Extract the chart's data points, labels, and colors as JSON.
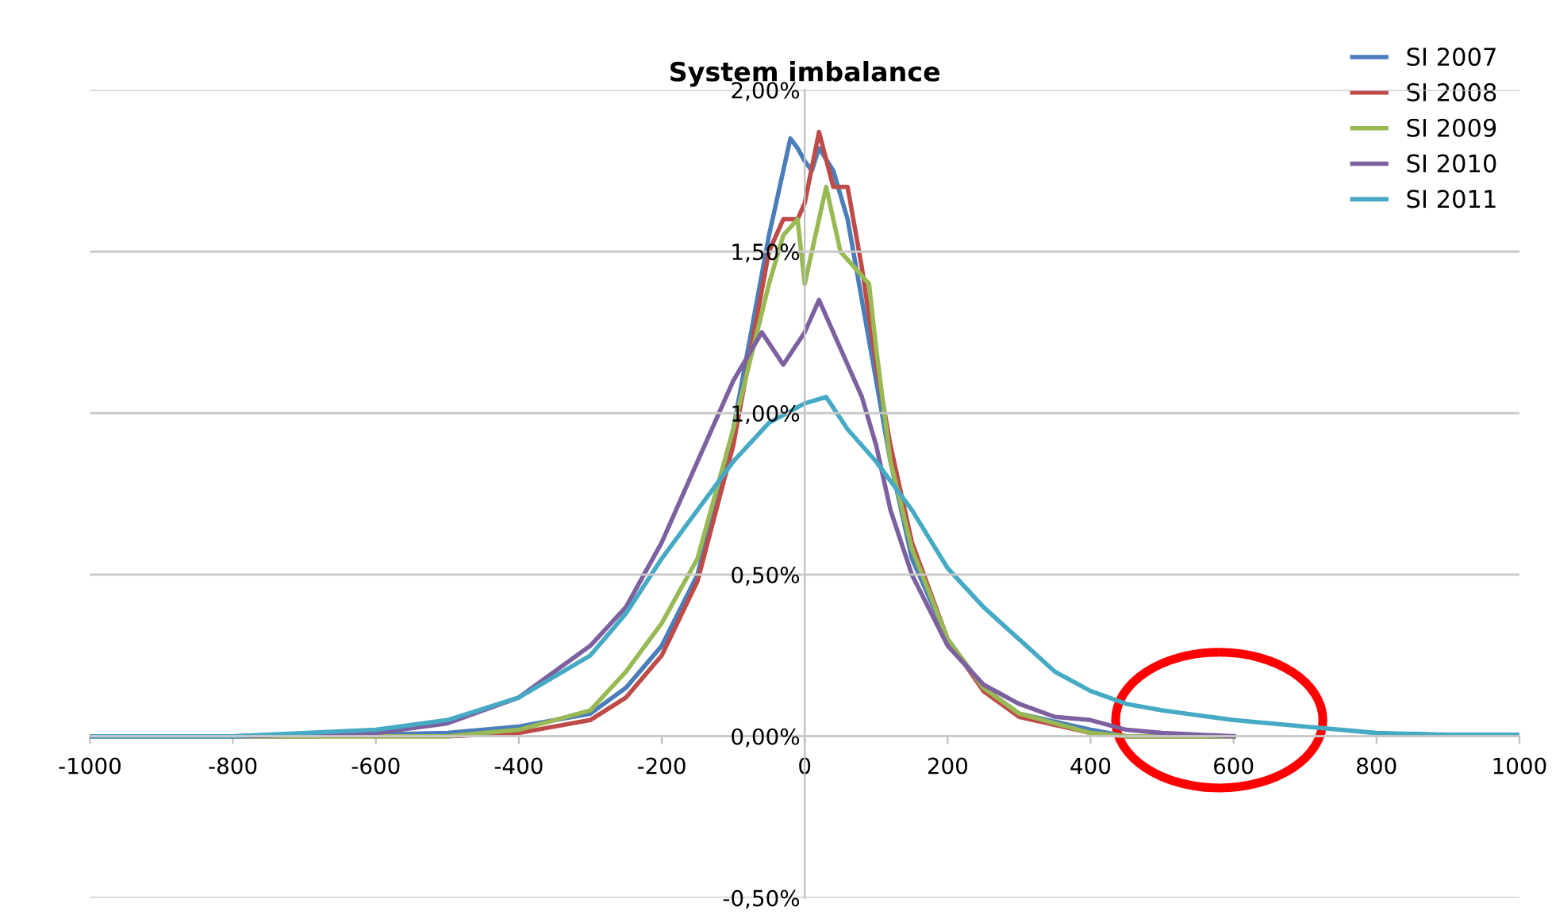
{
  "chart_data": {
    "type": "line",
    "title": "System imbalance",
    "xlim": [
      -1000,
      1000
    ],
    "xticks": [
      -1000,
      -800,
      -600,
      -400,
      -200,
      0,
      200,
      400,
      600,
      800,
      1000
    ],
    "ylim": [
      -0.5,
      2.0
    ],
    "yticks": [
      {
        "value": -0.5,
        "label": "-0,50%"
      },
      {
        "value": 0,
        "label": "0,00%"
      },
      {
        "value": 0.5,
        "label": "0,50%"
      },
      {
        "value": 1.0,
        "label": "1,00%"
      },
      {
        "value": 1.5,
        "label": "1,50%"
      },
      {
        "value": 2.0,
        "label": "2,00%"
      }
    ],
    "grid": "y",
    "legend": "top right",
    "marker": "none",
    "line_style": "solid",
    "series": [
      {
        "name": "SI 2007",
        "color": "#4a7ebb",
        "x": [
          -1000,
          -700,
          -500,
          -400,
          -300,
          -250,
          -200,
          -150,
          -100,
          -75,
          -50,
          -30,
          -20,
          -10,
          0,
          10,
          20,
          40,
          60,
          80,
          100,
          120,
          150,
          200,
          250,
          300,
          400,
          450,
          600
        ],
        "values": [
          0,
          0,
          0.01,
          0.03,
          0.07,
          0.15,
          0.28,
          0.5,
          0.95,
          1.25,
          1.55,
          1.75,
          1.85,
          1.82,
          1.78,
          1.75,
          1.82,
          1.75,
          1.6,
          1.35,
          1.1,
          0.85,
          0.55,
          0.3,
          0.15,
          0.07,
          0.02,
          0,
          0
        ]
      },
      {
        "name": "SI 2008",
        "color": "#be4b48",
        "x": [
          -1000,
          -700,
          -500,
          -400,
          -300,
          -250,
          -200,
          -150,
          -100,
          -50,
          -30,
          -10,
          0,
          20,
          40,
          60,
          80,
          100,
          120,
          150,
          200,
          250,
          300,
          400,
          450,
          600
        ],
        "values": [
          0,
          0,
          0,
          0.01,
          0.05,
          0.12,
          0.25,
          0.48,
          0.9,
          1.5,
          1.6,
          1.6,
          1.65,
          1.87,
          1.7,
          1.7,
          1.45,
          1.15,
          0.9,
          0.6,
          0.3,
          0.14,
          0.06,
          0.01,
          0,
          0
        ]
      },
      {
        "name": "SI 2009",
        "color": "#98b954",
        "x": [
          -1000,
          -700,
          -500,
          -400,
          -300,
          -250,
          -200,
          -150,
          -100,
          -50,
          -30,
          -10,
          0,
          10,
          30,
          50,
          70,
          90,
          100,
          120,
          150,
          200,
          250,
          300,
          400,
          450,
          600
        ],
        "values": [
          0,
          0,
          0,
          0.02,
          0.08,
          0.2,
          0.35,
          0.55,
          0.95,
          1.4,
          1.55,
          1.6,
          1.4,
          1.5,
          1.7,
          1.5,
          1.45,
          1.4,
          1.2,
          0.85,
          0.58,
          0.3,
          0.15,
          0.07,
          0.01,
          0,
          0
        ]
      },
      {
        "name": "SI 2010",
        "color": "#7d60a0",
        "x": [
          -1000,
          -800,
          -600,
          -500,
          -400,
          -300,
          -250,
          -200,
          -150,
          -100,
          -60,
          -30,
          0,
          20,
          50,
          80,
          100,
          120,
          150,
          200,
          250,
          300,
          350,
          400,
          450,
          500,
          600
        ],
        "values": [
          0,
          0,
          0.01,
          0.04,
          0.12,
          0.28,
          0.4,
          0.6,
          0.85,
          1.1,
          1.25,
          1.15,
          1.25,
          1.35,
          1.2,
          1.05,
          0.9,
          0.7,
          0.5,
          0.28,
          0.16,
          0.1,
          0.06,
          0.05,
          0.02,
          0.01,
          0
        ]
      },
      {
        "name": "SI 2011",
        "color": "#46aac5",
        "x": [
          -1000,
          -800,
          -600,
          -500,
          -400,
          -300,
          -250,
          -200,
          -150,
          -100,
          -50,
          0,
          30,
          60,
          100,
          150,
          200,
          250,
          300,
          350,
          400,
          450,
          500,
          600,
          700,
          800,
          900,
          1000
        ],
        "values": [
          0,
          0,
          0.02,
          0.05,
          0.12,
          0.25,
          0.38,
          0.55,
          0.7,
          0.85,
          0.97,
          1.03,
          1.05,
          0.95,
          0.85,
          0.7,
          0.52,
          0.4,
          0.3,
          0.2,
          0.14,
          0.1,
          0.08,
          0.05,
          0.03,
          0.01,
          0.005,
          0.005
        ]
      }
    ]
  }
}
